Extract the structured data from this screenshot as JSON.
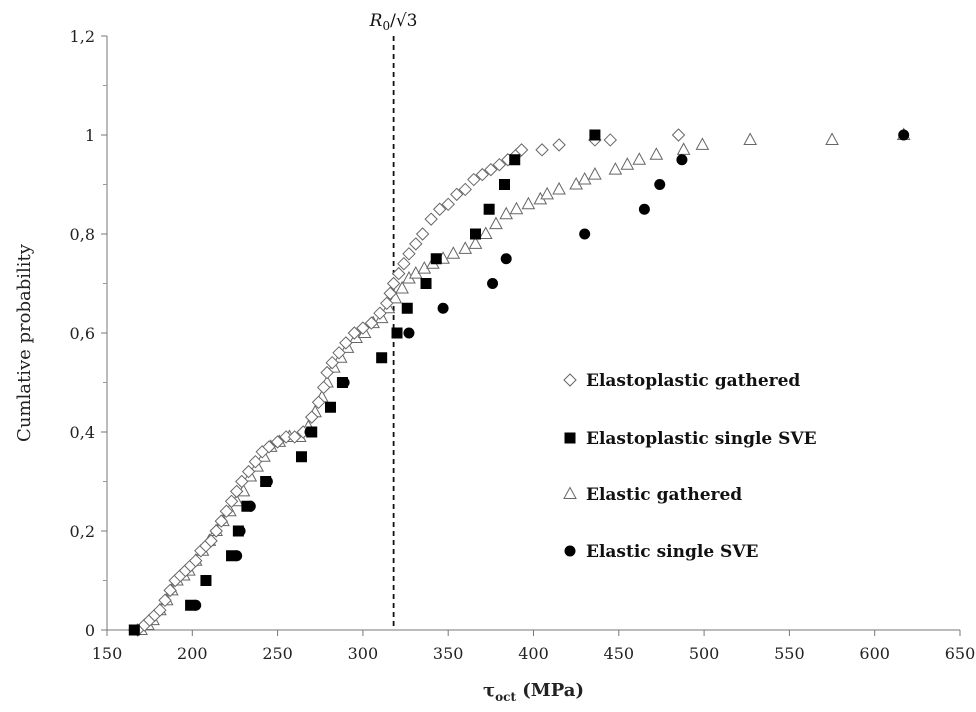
{
  "chart_data": {
    "type": "scatter",
    "title": "",
    "xlabel": "τ_oct (MPa)",
    "xlabel_main": "τ",
    "xlabel_sub": "oct",
    "xlabel_unit": "(MPa)",
    "ylabel": "Cumlative probability",
    "xlim": [
      150,
      650
    ],
    "ylim": [
      0,
      1.2
    ],
    "x_ticks": [
      {
        "value": 150,
        "label": "150"
      },
      {
        "value": 200,
        "label": "200"
      },
      {
        "value": 250,
        "label": "250"
      },
      {
        "value": 300,
        "label": "300"
      },
      {
        "value": 350,
        "label": "350"
      },
      {
        "value": 400,
        "label": "400"
      },
      {
        "value": 450,
        "label": "450"
      },
      {
        "value": 500,
        "label": "500"
      },
      {
        "value": 550,
        "label": "550"
      },
      {
        "value": 600,
        "label": "600"
      },
      {
        "value": 650,
        "label": "650"
      }
    ],
    "y_ticks": [
      {
        "value": 0,
        "label": "0"
      },
      {
        "value": 0.2,
        "label": "0,2"
      },
      {
        "value": 0.4,
        "label": "0,4"
      },
      {
        "value": 0.6,
        "label": "0,6"
      },
      {
        "value": 0.8,
        "label": "0,8"
      },
      {
        "value": 1.0,
        "label": "1"
      },
      {
        "value": 1.2,
        "label": "1,2"
      }
    ],
    "grid": false,
    "legend_position": "right",
    "reference_line": {
      "x": 318,
      "label_main": "R",
      "label_sub": "0",
      "label_rest": "/√3",
      "style": "dashed"
    },
    "series": [
      {
        "name": "Elastoplastic gathered",
        "marker": "diamond-open",
        "points": [
          [
            168,
            0.0
          ],
          [
            172,
            0.01
          ],
          [
            175,
            0.02
          ],
          [
            178,
            0.03
          ],
          [
            181,
            0.04
          ],
          [
            184,
            0.06
          ],
          [
            187,
            0.08
          ],
          [
            190,
            0.1
          ],
          [
            193,
            0.11
          ],
          [
            196,
            0.12
          ],
          [
            199,
            0.13
          ],
          [
            202,
            0.14
          ],
          [
            205,
            0.16
          ],
          [
            208,
            0.17
          ],
          [
            211,
            0.18
          ],
          [
            214,
            0.2
          ],
          [
            217,
            0.22
          ],
          [
            220,
            0.24
          ],
          [
            223,
            0.26
          ],
          [
            226,
            0.28
          ],
          [
            229,
            0.3
          ],
          [
            233,
            0.32
          ],
          [
            237,
            0.34
          ],
          [
            241,
            0.36
          ],
          [
            245,
            0.37
          ],
          [
            250,
            0.38
          ],
          [
            255,
            0.39
          ],
          [
            260,
            0.39
          ],
          [
            265,
            0.4
          ],
          [
            270,
            0.43
          ],
          [
            274,
            0.46
          ],
          [
            277,
            0.49
          ],
          [
            279,
            0.52
          ],
          [
            282,
            0.54
          ],
          [
            286,
            0.56
          ],
          [
            290,
            0.58
          ],
          [
            295,
            0.6
          ],
          [
            300,
            0.61
          ],
          [
            305,
            0.62
          ],
          [
            310,
            0.64
          ],
          [
            314,
            0.66
          ],
          [
            316,
            0.68
          ],
          [
            318,
            0.7
          ],
          [
            321,
            0.72
          ],
          [
            324,
            0.74
          ],
          [
            327,
            0.76
          ],
          [
            331,
            0.78
          ],
          [
            335,
            0.8
          ],
          [
            340,
            0.83
          ],
          [
            345,
            0.85
          ],
          [
            350,
            0.86
          ],
          [
            355,
            0.88
          ],
          [
            360,
            0.89
          ],
          [
            365,
            0.91
          ],
          [
            370,
            0.92
          ],
          [
            375,
            0.93
          ],
          [
            380,
            0.94
          ],
          [
            385,
            0.95
          ],
          [
            390,
            0.96
          ],
          [
            393,
            0.97
          ],
          [
            405,
            0.97
          ],
          [
            415,
            0.98
          ],
          [
            436,
            0.99
          ],
          [
            445,
            0.99
          ],
          [
            485,
            1.0
          ]
        ]
      },
      {
        "name": "Elastoplastic single SVE",
        "marker": "square-filled",
        "points": [
          [
            166,
            0.0
          ],
          [
            199,
            0.05
          ],
          [
            208,
            0.1
          ],
          [
            223,
            0.15
          ],
          [
            227,
            0.2
          ],
          [
            232,
            0.25
          ],
          [
            243,
            0.3
          ],
          [
            264,
            0.35
          ],
          [
            270,
            0.4
          ],
          [
            281,
            0.45
          ],
          [
            288,
            0.5
          ],
          [
            311,
            0.55
          ],
          [
            320,
            0.6
          ],
          [
            326,
            0.65
          ],
          [
            337,
            0.7
          ],
          [
            343,
            0.75
          ],
          [
            366,
            0.8
          ],
          [
            374,
            0.85
          ],
          [
            383,
            0.9
          ],
          [
            389,
            0.95
          ],
          [
            436,
            1.0
          ]
        ]
      },
      {
        "name": "Elastic gathered",
        "marker": "triangle-open",
        "points": [
          [
            170,
            0.0
          ],
          [
            174,
            0.01
          ],
          [
            177,
            0.02
          ],
          [
            181,
            0.04
          ],
          [
            185,
            0.06
          ],
          [
            188,
            0.08
          ],
          [
            191,
            0.1
          ],
          [
            195,
            0.11
          ],
          [
            198,
            0.12
          ],
          [
            202,
            0.14
          ],
          [
            206,
            0.16
          ],
          [
            210,
            0.18
          ],
          [
            214,
            0.2
          ],
          [
            218,
            0.22
          ],
          [
            222,
            0.24
          ],
          [
            226,
            0.26
          ],
          [
            230,
            0.28
          ],
          [
            234,
            0.31
          ],
          [
            238,
            0.33
          ],
          [
            242,
            0.35
          ],
          [
            246,
            0.37
          ],
          [
            251,
            0.38
          ],
          [
            257,
            0.39
          ],
          [
            263,
            0.39
          ],
          [
            268,
            0.41
          ],
          [
            272,
            0.44
          ],
          [
            276,
            0.47
          ],
          [
            279,
            0.5
          ],
          [
            283,
            0.53
          ],
          [
            287,
            0.55
          ],
          [
            291,
            0.57
          ],
          [
            296,
            0.59
          ],
          [
            301,
            0.6
          ],
          [
            306,
            0.62
          ],
          [
            311,
            0.63
          ],
          [
            315,
            0.65
          ],
          [
            319,
            0.67
          ],
          [
            323,
            0.69
          ],
          [
            327,
            0.71
          ],
          [
            331,
            0.72
          ],
          [
            336,
            0.73
          ],
          [
            341,
            0.74
          ],
          [
            347,
            0.75
          ],
          [
            353,
            0.76
          ],
          [
            360,
            0.77
          ],
          [
            366,
            0.78
          ],
          [
            372,
            0.8
          ],
          [
            378,
            0.82
          ],
          [
            384,
            0.84
          ],
          [
            390,
            0.85
          ],
          [
            397,
            0.86
          ],
          [
            404,
            0.87
          ],
          [
            408,
            0.88
          ],
          [
            415,
            0.89
          ],
          [
            425,
            0.9
          ],
          [
            430,
            0.91
          ],
          [
            436,
            0.92
          ],
          [
            448,
            0.93
          ],
          [
            455,
            0.94
          ],
          [
            462,
            0.95
          ],
          [
            472,
            0.96
          ],
          [
            488,
            0.97
          ],
          [
            499,
            0.98
          ],
          [
            527,
            0.99
          ],
          [
            575,
            0.99
          ],
          [
            617,
            1.0
          ]
        ]
      },
      {
        "name": "Elastic single SVE",
        "marker": "circle-filled",
        "points": [
          [
            166,
            0.0
          ],
          [
            202,
            0.05
          ],
          [
            208,
            0.1
          ],
          [
            226,
            0.15
          ],
          [
            228,
            0.2
          ],
          [
            234,
            0.25
          ],
          [
            244,
            0.3
          ],
          [
            269,
            0.4
          ],
          [
            289,
            0.5
          ],
          [
            327,
            0.6
          ],
          [
            347,
            0.65
          ],
          [
            376,
            0.7
          ],
          [
            384,
            0.75
          ],
          [
            430,
            0.8
          ],
          [
            465,
            0.85
          ],
          [
            474,
            0.9
          ],
          [
            487,
            0.95
          ],
          [
            617,
            1.0
          ]
        ]
      }
    ]
  }
}
